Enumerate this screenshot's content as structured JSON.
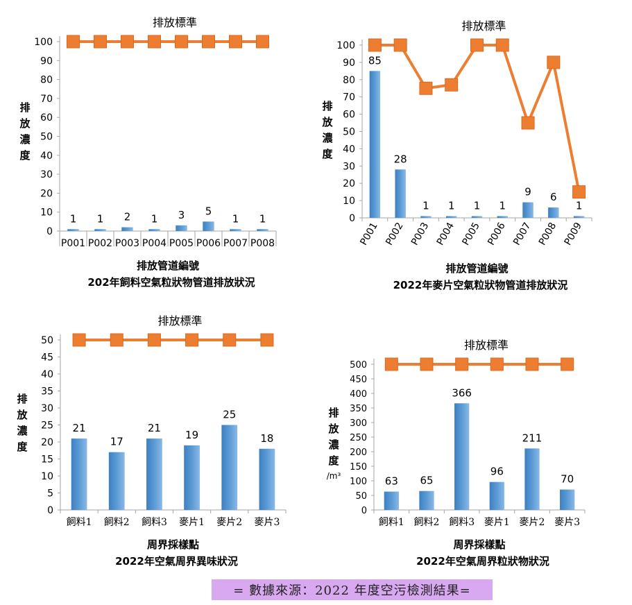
{
  "chart_data": [
    {
      "type": "bar",
      "legend_line_label": "排放標準",
      "ylabel": "排放濃度",
      "xlabel": "排放管道編號",
      "title": "202年飼料空氣粒狀物管道排放狀況",
      "ylim": [
        0,
        100
      ],
      "yticks": [
        0,
        10,
        20,
        30,
        40,
        50,
        60,
        70,
        80,
        90,
        100
      ],
      "categories": [
        "P001",
        "P002",
        "P003",
        "P004",
        "P005",
        "P006",
        "P007",
        "P008"
      ],
      "values": [
        1,
        1,
        2,
        1,
        3,
        5,
        1,
        1
      ],
      "standard": [
        100,
        100,
        100,
        100,
        100,
        100,
        100,
        100
      ],
      "xlabel_rotated": false,
      "grid": false
    },
    {
      "type": "bar",
      "legend_line_label": "排放標準",
      "ylabel": "排放濃度",
      "xlabel": "排放管道編號",
      "title": "2022年麥片空氣粒狀物管道排放狀況",
      "ylim": [
        0,
        100
      ],
      "yticks": [
        0,
        10,
        20,
        30,
        40,
        50,
        60,
        70,
        80,
        90,
        100
      ],
      "categories": [
        "P001",
        "P002",
        "P003",
        "P004",
        "P005",
        "P006",
        "P007",
        "P008",
        "P009"
      ],
      "values": [
        85,
        28,
        1,
        1,
        1,
        1,
        9,
        6,
        1
      ],
      "standard": [
        100,
        100,
        75,
        77,
        100,
        100,
        55,
        90,
        15
      ],
      "xlabel_rotated": true,
      "grid": false
    },
    {
      "type": "bar",
      "legend_line_label": "排放標準",
      "ylabel": "排放濃度",
      "xlabel": "周界採樣點",
      "title": "2022年空氣周界異味狀況",
      "ylim": [
        0,
        50
      ],
      "yticks": [
        0,
        5,
        10,
        15,
        20,
        25,
        30,
        35,
        40,
        45,
        50
      ],
      "categories": [
        "飼料1",
        "飼料2",
        "飼料3",
        "麥片1",
        "麥片2",
        "麥片3"
      ],
      "values": [
        21,
        17,
        21,
        19,
        25,
        18
      ],
      "standard": [
        50,
        50,
        50,
        50,
        50,
        50
      ],
      "xlabel_rotated": false,
      "grid": false
    },
    {
      "type": "bar",
      "legend_line_label": "排放標準",
      "ylabel": "排放濃度",
      "yunit": "/m³",
      "xlabel": "周界採樣點",
      "title": "2022年空氣周界粒狀物狀況",
      "ylim": [
        0,
        500
      ],
      "yticks": [
        0,
        50,
        100,
        150,
        200,
        250,
        300,
        350,
        400,
        450,
        500
      ],
      "categories": [
        "飼料1",
        "飼料2",
        "飼料3",
        "麥片1",
        "麥片2",
        "麥片3"
      ],
      "values": [
        63,
        65,
        366,
        96,
        211,
        70
      ],
      "standard": [
        500,
        500,
        500,
        500,
        500,
        500
      ],
      "xlabel_rotated": false,
      "grid": false
    }
  ],
  "colors": {
    "bar": "#5b9bd5",
    "bar_dark": "#3e7fc2",
    "line": "#ed7d31",
    "axis": "#a6a6a6"
  },
  "footer": {
    "source_text": "= 數據來源：2022 年度空污檢測結果="
  }
}
